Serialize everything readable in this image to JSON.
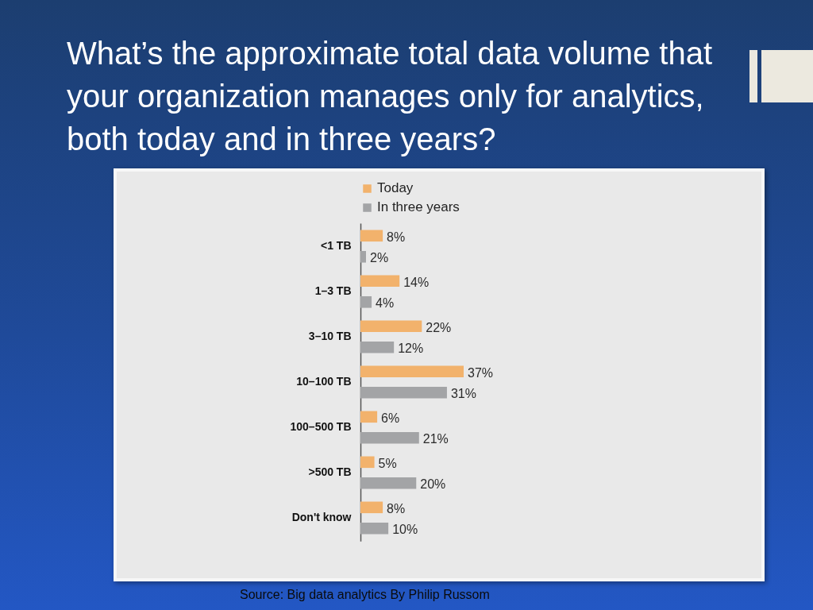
{
  "chart_data": {
    "type": "bar",
    "orientation": "horizontal",
    "title": "What’s the approximate total data volume that your organization manages only for analytics, both today and in three years?",
    "categories": [
      "<1 TB",
      "1–3 TB",
      "3–10 TB",
      "10–100 TB",
      "100–500 TB",
      ">500 TB",
      "Don't know"
    ],
    "series": [
      {
        "name": "Today",
        "color": "#f2b26c",
        "values": [
          8,
          14,
          22,
          37,
          6,
          5,
          8
        ],
        "value_labels": [
          "8%",
          "14%",
          "22%",
          "37%",
          "6%",
          "5%",
          "8%"
        ]
      },
      {
        "name": "In three years",
        "color": "#a3a4a6",
        "values": [
          2,
          4,
          12,
          31,
          21,
          20,
          10
        ],
        "value_labels": [
          "2%",
          "4%",
          "12%",
          "31%",
          "21%",
          "20%",
          "10%"
        ]
      }
    ],
    "legend": "top",
    "annotations": [
      "Source: Big data analytics By Philip Russom"
    ]
  }
}
